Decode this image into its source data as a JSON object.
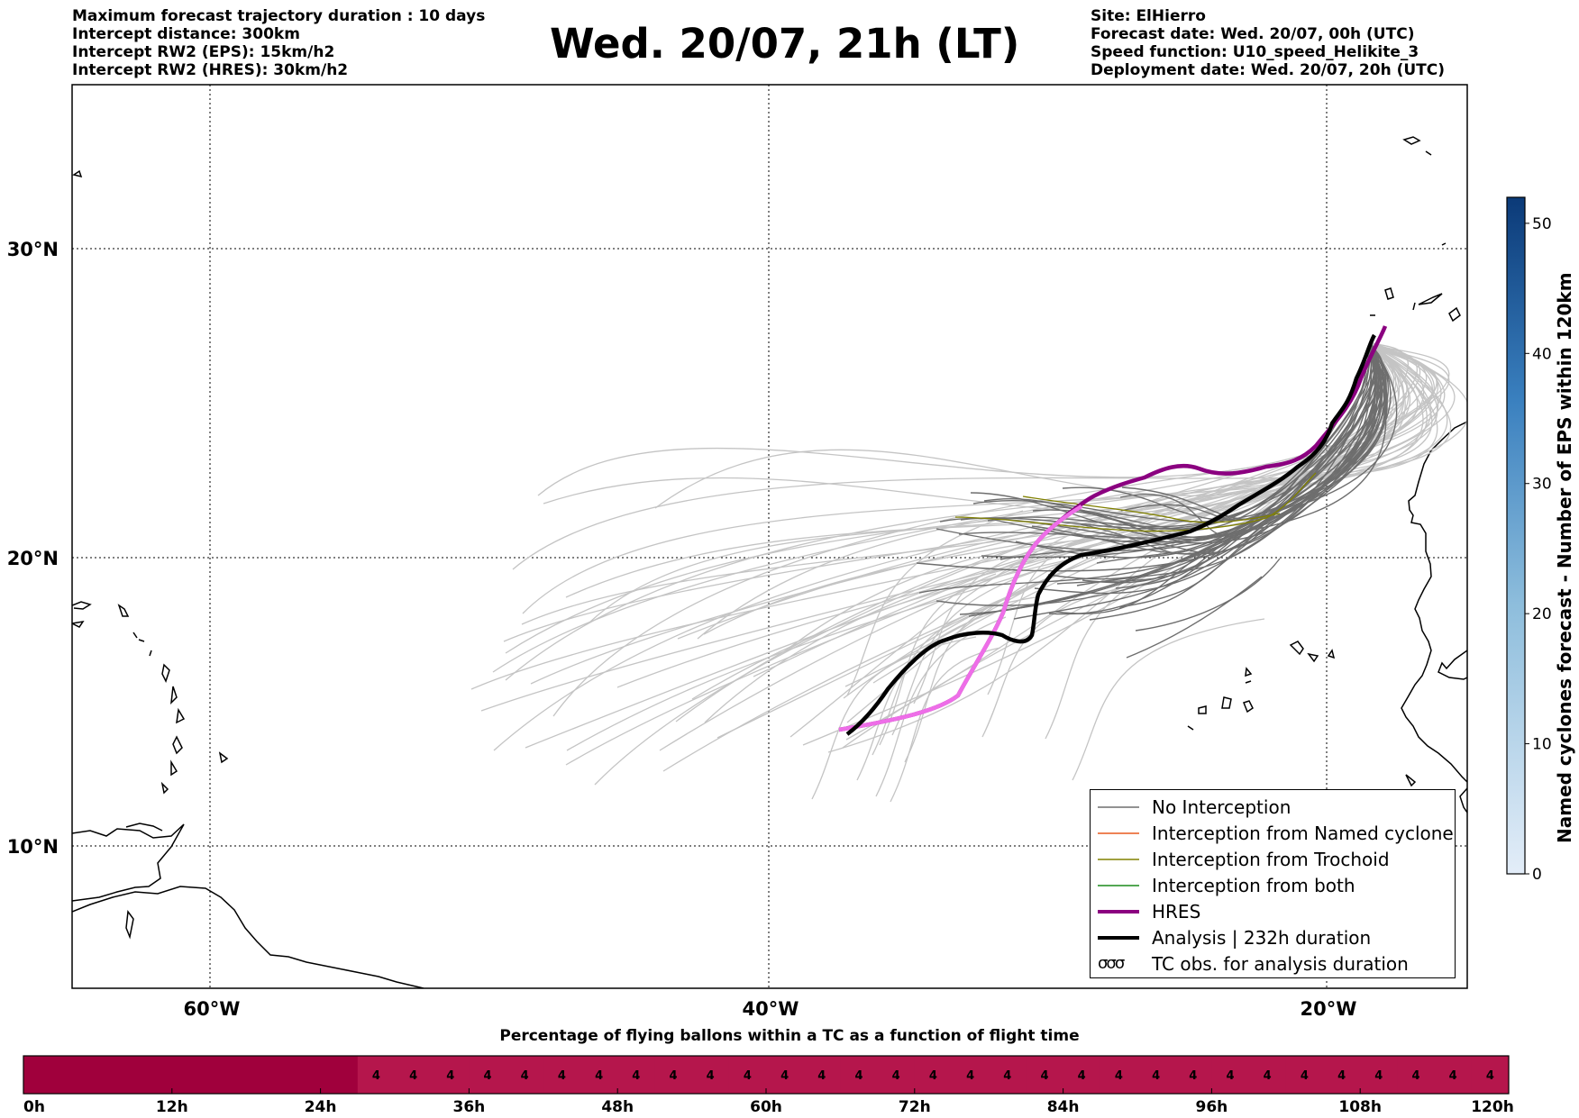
{
  "header_left": [
    "Maximum forecast trajectory duration : 10 days",
    "Intercept distance: 300km",
    "Intercept RW2 (EPS):  15km/h2",
    "Intercept RW2 (HRES): 30km/h2"
  ],
  "header_right": [
    "Site: ElHierro",
    "Forecast date: Wed. 20/07, 00h (UTC)",
    "Speed function: U10_speed_Helikite_3",
    "Deployment date: Wed. 20/07, 20h (UTC)"
  ],
  "title": "Wed. 20/07, 21h (LT)",
  "map": {
    "lat_labels": [
      "30°N",
      "20°N",
      "10°N"
    ],
    "lon_labels": [
      "60°W",
      "40°W",
      "20°W"
    ]
  },
  "legend": {
    "items": [
      {
        "label": "No Interception",
        "color": "#6e6e6e",
        "width": 1.5
      },
      {
        "label": "Interception from Named cyclone",
        "color": "#e8591f",
        "width": 1.5
      },
      {
        "label": "Interception from Trochoid",
        "color": "#808000",
        "width": 1.5
      },
      {
        "label": "Interception from both",
        "color": "#1a8a1a",
        "width": 1.5
      },
      {
        "label": "HRES",
        "color": "#8b0080",
        "width": 4
      },
      {
        "label": "Analysis | 232h duration",
        "color": "#000000",
        "width": 4
      }
    ],
    "tc_label": "TC obs. for analysis duration",
    "tc_symbol": "σσσ"
  },
  "colorbar": {
    "label": "Named cyclones forecast - Number of EPS within 120km",
    "ticks": [
      "0",
      "10",
      "20",
      "30",
      "40",
      "50"
    ],
    "min": 0,
    "max": 52,
    "color_low": "#e3edf8",
    "color_high": "#0b3a78"
  },
  "bottom_bar": {
    "title": "Percentage of flying ballons within a TC as a function of flight time",
    "tick_labels": [
      "0h",
      "12h",
      "24h",
      "36h",
      "48h",
      "60h",
      "72h",
      "84h",
      "96h",
      "108h",
      "120h"
    ],
    "segment_values": [
      0,
      0,
      0,
      0,
      0,
      0,
      0,
      0,
      0,
      4,
      4,
      4,
      4,
      4,
      4,
      4,
      4,
      4,
      4,
      4,
      4,
      4,
      4,
      4,
      4,
      4,
      4,
      4,
      4,
      4,
      4,
      4,
      4,
      4,
      4,
      4,
      4,
      4,
      4,
      4
    ],
    "segment_labels": [
      "",
      "",
      "",
      "",
      "",
      "",
      "",
      "",
      "",
      "4",
      "4",
      "4",
      "4",
      "4",
      "4",
      "4",
      "4",
      "4",
      "4",
      "4",
      "4",
      "4",
      "4",
      "4",
      "4",
      "4",
      "4",
      "4",
      "4",
      "4",
      "4",
      "4",
      "4",
      "4",
      "4",
      "4",
      "4",
      "4",
      "4",
      "4"
    ],
    "color_zero": "#a0003c",
    "color_four": "#b5164c"
  }
}
